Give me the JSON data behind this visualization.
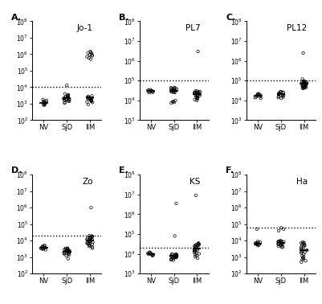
{
  "panels": [
    {
      "label": "A.",
      "title": "Jo-1",
      "ylim": [
        100.0,
        100000000.0
      ],
      "yticks": [
        100.0,
        1000.0,
        10000.0,
        100000.0,
        1000000.0,
        10000000.0,
        100000000.0
      ],
      "hline": 10000.0,
      "groups": {
        "NV": [
          1200,
          900,
          1100,
          800,
          1400,
          1050,
          950,
          1300,
          1600,
          1800
        ],
        "SjD": [
          1500,
          2000,
          3000,
          2500,
          1800,
          1200,
          4000,
          3500,
          2200,
          1600,
          2800,
          1900,
          2100,
          13000,
          1700,
          2400,
          3200,
          2600,
          1400,
          3000,
          2000,
          1100
        ],
        "IIM": [
          1500000,
          800000,
          900000,
          1100000,
          700000,
          1300000,
          600000,
          950000,
          500000,
          1200000,
          2000,
          1500,
          1800,
          2200,
          1700,
          1300,
          2500,
          1600,
          900,
          2800,
          3000,
          1200,
          1900,
          2100,
          1400,
          2300
        ]
      }
    },
    {
      "label": "B.",
      "title": "PL7",
      "ylim": [
        1000.0,
        100000000.0
      ],
      "yticks": [
        1000.0,
        10000.0,
        100000.0,
        1000000.0,
        10000000.0,
        100000000.0
      ],
      "hline": 100000.0,
      "groups": {
        "NV": [
          30000,
          25000,
          35000,
          28000,
          32000,
          27000,
          31000,
          26000,
          33000,
          29000
        ],
        "SjD": [
          35000,
          40000,
          30000,
          45000,
          28000,
          32000,
          38000,
          25000,
          42000,
          27000,
          36000,
          31000,
          29000,
          43000,
          26000,
          34000,
          41000,
          8000,
          7500,
          9000,
          8500,
          10000
        ],
        "IIM": [
          3000000,
          25000,
          20000,
          30000,
          15000,
          28000,
          18000,
          22000,
          17000,
          25000,
          19000,
          23000,
          14000,
          26000,
          16000,
          21000,
          13000,
          27000,
          12000,
          24000,
          11000,
          29000,
          10000
        ]
      }
    },
    {
      "label": "C.",
      "title": "PL12",
      "ylim": [
        1000.0,
        100000000.0
      ],
      "yticks": [
        1000.0,
        10000.0,
        100000.0,
        1000000.0,
        10000000.0,
        100000000.0
      ],
      "hline": 100000.0,
      "groups": {
        "NV": [
          18000,
          15000,
          22000,
          17000,
          20000,
          14000,
          19000,
          16000,
          21000,
          13000
        ],
        "SjD": [
          20000,
          25000,
          18000,
          28000,
          16000,
          22000,
          24000,
          15000,
          27000,
          17000,
          21000,
          19000,
          14000,
          26000,
          13000
        ],
        "IIM": [
          2500000,
          40000,
          80000,
          120000,
          60000,
          90000,
          50000,
          70000,
          45000,
          95000,
          55000,
          75000,
          48000,
          85000,
          52000,
          68000,
          46000,
          88000,
          54000,
          72000,
          44000,
          92000,
          56000,
          78000,
          42000
        ]
      }
    },
    {
      "label": "D.",
      "title": "Zo",
      "ylim": [
        100.0,
        100000000.0
      ],
      "yticks": [
        100.0,
        1000.0,
        10000.0,
        100000.0,
        1000000.0,
        10000000.0,
        100000000.0
      ],
      "hline": 20000.0,
      "groups": {
        "NV": [
          3500,
          4000,
          3000,
          4500,
          3200,
          3800,
          2800,
          4200,
          3400,
          3600,
          5000,
          4800
        ],
        "SjD": [
          2500,
          3000,
          2000,
          3500,
          1800,
          2800,
          1600,
          3200,
          2200,
          1400,
          2600,
          1900,
          2100,
          3400,
          1700,
          2400,
          3000,
          2300,
          1500,
          2900,
          2000,
          1200,
          800
        ],
        "IIM": [
          1000000,
          7000,
          8000,
          9000,
          10000,
          11000,
          12000,
          6500,
          13000,
          7500,
          14000,
          6000,
          15000,
          5500,
          16000,
          8500,
          5000,
          17000,
          9500,
          4500,
          18000,
          10500,
          4000,
          19000,
          11500,
          3500,
          20000
        ]
      }
    },
    {
      "label": "E.",
      "title": "KS",
      "ylim": [
        1000.0,
        100000000.0
      ],
      "yticks": [
        1000.0,
        10000.0,
        100000.0,
        1000000.0,
        10000000.0,
        100000000.0
      ],
      "hline": 20000.0,
      "groups": {
        "NV": [
          9000,
          11000,
          8500,
          12000,
          9500,
          10500,
          8000,
          11500,
          9200,
          10000
        ],
        "SjD": [
          3500000,
          80000,
          8000,
          7000,
          9000,
          6500,
          8500,
          7500,
          6000,
          9500,
          5500,
          8200,
          7200,
          5000,
          8800,
          6800,
          5200,
          9200,
          6200,
          7800,
          4800,
          9800,
          6600,
          8000
        ],
        "IIM": [
          9000000,
          20000,
          25000,
          15000,
          30000,
          18000,
          22000,
          17000,
          28000,
          16000,
          24000,
          14000,
          26000,
          13000,
          27000,
          12000,
          29000,
          11000,
          32000,
          10000,
          33000,
          9000,
          35000,
          8000,
          7000,
          6000
        ]
      }
    },
    {
      "label": "F.",
      "title": "Ha",
      "ylim": [
        100.0,
        100000000.0
      ],
      "yticks": [
        100.0,
        1000.0,
        10000.0,
        100000.0,
        1000000.0,
        10000000.0,
        100000000.0
      ],
      "hline": 60000.0,
      "groups": {
        "NV": [
          6000,
          7000,
          5500,
          7500,
          6200,
          6800,
          5000,
          7200,
          6400,
          5800,
          8000,
          9000,
          50000
        ],
        "SjD": [
          7000,
          8000,
          6000,
          9000,
          5500,
          8500,
          5000,
          9500,
          6500,
          4500,
          8200,
          6200,
          4000,
          9200,
          5800,
          7800,
          4200,
          9800,
          6600,
          40000,
          50000,
          60000
        ],
        "IIM": [
          1500,
          1200,
          1800,
          1000,
          2000,
          900,
          2200,
          800,
          2400,
          700,
          2600,
          600,
          2800,
          500,
          3000,
          3500,
          4000,
          4500,
          5000,
          5500,
          6000,
          6500,
          7000,
          7500,
          8000
        ]
      }
    }
  ],
  "group_x": {
    "NV": 0,
    "SjD": 1,
    "IIM": 2
  },
  "xtick_labels": [
    "NV",
    "SjD",
    "IIM"
  ],
  "dot_color": "black",
  "dot_size": 6,
  "median_color": "black",
  "hline_color": "black",
  "hline_style": "dotted",
  "bg_color": "white"
}
